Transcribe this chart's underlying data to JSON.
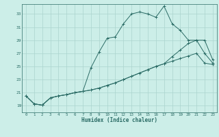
{
  "xlabel": "Humidex (Indice chaleur)",
  "bg_color": "#cceee8",
  "grid_color": "#aad4ce",
  "line_color": "#2a6b65",
  "xlim": [
    -0.5,
    23.5
  ],
  "ylim": [
    18.0,
    34.5
  ],
  "yticks": [
    19,
    21,
    23,
    25,
    27,
    29,
    31,
    33
  ],
  "xticks": [
    0,
    1,
    2,
    3,
    4,
    5,
    6,
    7,
    8,
    9,
    10,
    11,
    12,
    13,
    14,
    15,
    16,
    17,
    18,
    19,
    20,
    21,
    22,
    23
  ],
  "line1_x": [
    0,
    1,
    2,
    3,
    4,
    5,
    6,
    7,
    8,
    9,
    10,
    11,
    12,
    13,
    14,
    15,
    16,
    17,
    18,
    19,
    20,
    21,
    22,
    23
  ],
  "line1_y": [
    20.5,
    19.3,
    19.1,
    20.2,
    20.5,
    20.7,
    21.0,
    21.2,
    21.4,
    21.7,
    22.1,
    22.5,
    23.0,
    23.5,
    24.0,
    24.5,
    25.0,
    25.4,
    25.8,
    26.2,
    26.6,
    27.0,
    25.5,
    25.3
  ],
  "line2_x": [
    0,
    1,
    2,
    3,
    4,
    5,
    6,
    7,
    8,
    9,
    10,
    11,
    12,
    13,
    14,
    15,
    16,
    17,
    18,
    19,
    20,
    21,
    22,
    23
  ],
  "line2_y": [
    20.5,
    19.3,
    19.1,
    20.2,
    20.5,
    20.7,
    21.0,
    21.2,
    24.8,
    27.2,
    29.3,
    29.5,
    31.5,
    33.0,
    33.3,
    33.0,
    32.5,
    34.2,
    31.5,
    30.5,
    29.0,
    29.0,
    27.0,
    25.5
  ],
  "line3_x": [
    0,
    1,
    2,
    3,
    4,
    5,
    6,
    7,
    8,
    9,
    10,
    11,
    12,
    13,
    14,
    15,
    16,
    17,
    18,
    19,
    20,
    21,
    22,
    23
  ],
  "line3_y": [
    20.5,
    19.3,
    19.1,
    20.2,
    20.5,
    20.7,
    21.0,
    21.2,
    21.4,
    21.7,
    22.1,
    22.5,
    23.0,
    23.5,
    24.0,
    24.5,
    25.0,
    25.4,
    26.5,
    27.5,
    28.5,
    29.0,
    29.0,
    26.0
  ]
}
